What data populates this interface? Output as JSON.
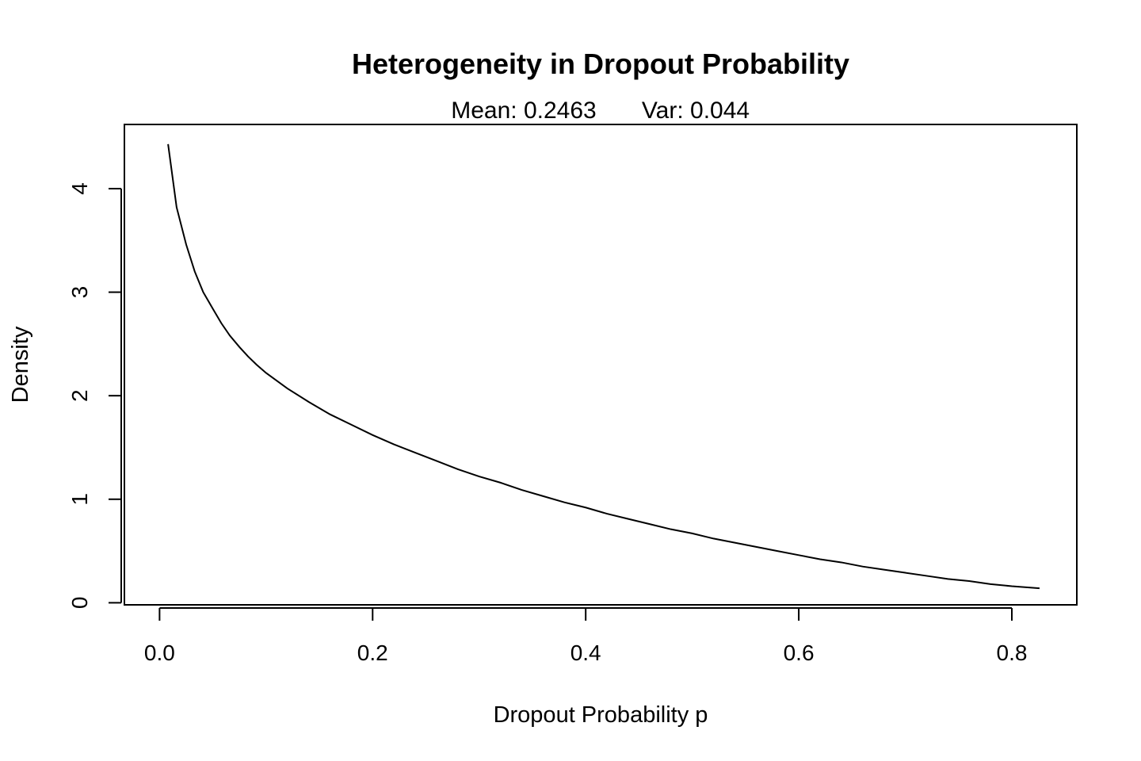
{
  "chart_data": {
    "type": "line",
    "title": "Heterogeneity in Dropout Probability",
    "subtitle": {
      "mean_text": "Mean: 0.2463",
      "var_text": "Var: 0.044"
    },
    "xlabel": "Dropout Probability p",
    "ylabel": "Density",
    "xlim": [
      -0.033,
      0.861
    ],
    "ylim": [
      -0.02,
      4.62
    ],
    "x_ticks": [
      0.0,
      0.2,
      0.4,
      0.6,
      0.8
    ],
    "x_tick_labels": [
      "0.0",
      "0.2",
      "0.4",
      "0.6",
      "0.8"
    ],
    "y_ticks": [
      0,
      1,
      2,
      3,
      4
    ],
    "y_tick_labels": [
      "0",
      "1",
      "2",
      "3",
      "4"
    ],
    "grid": false,
    "legend": "none",
    "line_color": "#000000",
    "series": [
      {
        "x": [
          0.008,
          0.016,
          0.025,
          0.033,
          0.041,
          0.05,
          0.058,
          0.066,
          0.075,
          0.083,
          0.091,
          0.1,
          0.12,
          0.14,
          0.16,
          0.18,
          0.2,
          0.22,
          0.24,
          0.26,
          0.28,
          0.3,
          0.32,
          0.34,
          0.36,
          0.38,
          0.4,
          0.42,
          0.44,
          0.46,
          0.48,
          0.5,
          0.52,
          0.54,
          0.56,
          0.58,
          0.6,
          0.62,
          0.64,
          0.66,
          0.68,
          0.7,
          0.72,
          0.74,
          0.76,
          0.78,
          0.8,
          0.826
        ],
        "y": [
          4.43,
          3.82,
          3.46,
          3.2,
          3.0,
          2.84,
          2.7,
          2.58,
          2.47,
          2.38,
          2.3,
          2.22,
          2.07,
          1.94,
          1.82,
          1.72,
          1.62,
          1.53,
          1.45,
          1.37,
          1.29,
          1.22,
          1.16,
          1.09,
          1.03,
          0.97,
          0.92,
          0.86,
          0.81,
          0.76,
          0.71,
          0.67,
          0.62,
          0.58,
          0.54,
          0.5,
          0.46,
          0.42,
          0.39,
          0.35,
          0.32,
          0.29,
          0.26,
          0.23,
          0.21,
          0.18,
          0.16,
          0.14
        ]
      }
    ]
  }
}
